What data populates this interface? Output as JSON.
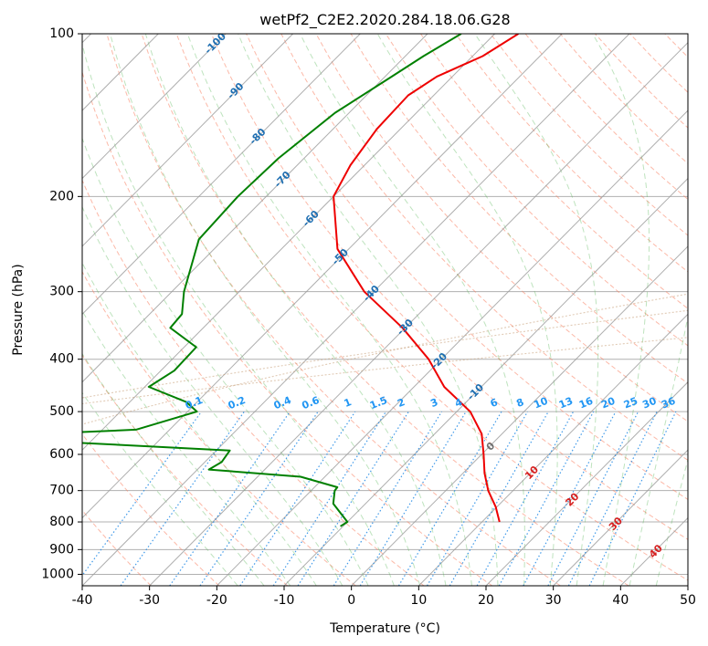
{
  "chart_data": {
    "type": "line",
    "subtype": "skew-t log-p diagram",
    "title": "wetPf2_C2E2.2020.284.18.06.G28",
    "xlabel": "Temperature (°C)",
    "ylabel": "Pressure (hPa)",
    "xlim": [
      -40,
      50
    ],
    "ylim": [
      1050,
      100
    ],
    "x_ticks": [
      -40,
      -30,
      -20,
      -10,
      0,
      10,
      20,
      30,
      40,
      50
    ],
    "y_ticks": [
      100,
      200,
      300,
      400,
      500,
      600,
      700,
      800,
      900,
      1000
    ],
    "isotherm_labels": [
      "-100",
      "-90",
      "-80",
      "-70",
      "-60",
      "-50",
      "-40",
      "-30",
      "-20",
      "-10",
      "0",
      "10",
      "20",
      "30",
      "40"
    ],
    "mixing_ratio_labels": [
      "0.1",
      "0.2",
      "0.4",
      "0.6",
      "1",
      "1.5",
      "2",
      "3",
      "4",
      "6",
      "8",
      "10",
      "13",
      "16",
      "20",
      "25",
      "30",
      "36"
    ],
    "series": [
      {
        "name": "temperature",
        "color": "#ee0000",
        "points": [
          [
            100,
            -56.5
          ],
          [
            110,
            -58.5
          ],
          [
            120,
            -62.3
          ],
          [
            130,
            -63.8
          ],
          [
            150,
            -63.5
          ],
          [
            175,
            -62.1
          ],
          [
            200,
            -60.0
          ],
          [
            250,
            -51.7
          ],
          [
            300,
            -41.4
          ],
          [
            350,
            -30.4
          ],
          [
            400,
            -21.9
          ],
          [
            450,
            -15.5
          ],
          [
            500,
            -8.0
          ],
          [
            550,
            -3.0
          ],
          [
            600,
            0.3
          ],
          [
            650,
            3.2
          ],
          [
            700,
            6.3
          ],
          [
            750,
            9.8
          ],
          [
            800,
            12.6
          ]
        ]
      },
      {
        "name": "dewpoint",
        "color": "#008000",
        "points": [
          [
            100,
            -65.0
          ],
          [
            110,
            -67.3
          ],
          [
            120,
            -69.0
          ],
          [
            140,
            -72.1
          ],
          [
            170,
            -73.8
          ],
          [
            200,
            -74.2
          ],
          [
            240,
            -73.7
          ],
          [
            270,
            -70.8
          ],
          [
            300,
            -68.2
          ],
          [
            330,
            -65.2
          ],
          [
            350,
            -64.9
          ],
          [
            380,
            -58.2
          ],
          [
            420,
            -58.0
          ],
          [
            450,
            -59.4
          ],
          [
            480,
            -51.6
          ],
          [
            500,
            -48.6
          ],
          [
            540,
            -55.0
          ],
          [
            555,
            -76.0
          ],
          [
            570,
            -63.0
          ],
          [
            590,
            -38.0
          ],
          [
            620,
            -37.5
          ],
          [
            640,
            -38.3
          ],
          [
            660,
            -23.6
          ],
          [
            690,
            -16.6
          ],
          [
            700,
            -16.5
          ],
          [
            740,
            -14.8
          ],
          [
            800,
            -10.0
          ],
          [
            815,
            -10.4
          ]
        ]
      }
    ]
  }
}
